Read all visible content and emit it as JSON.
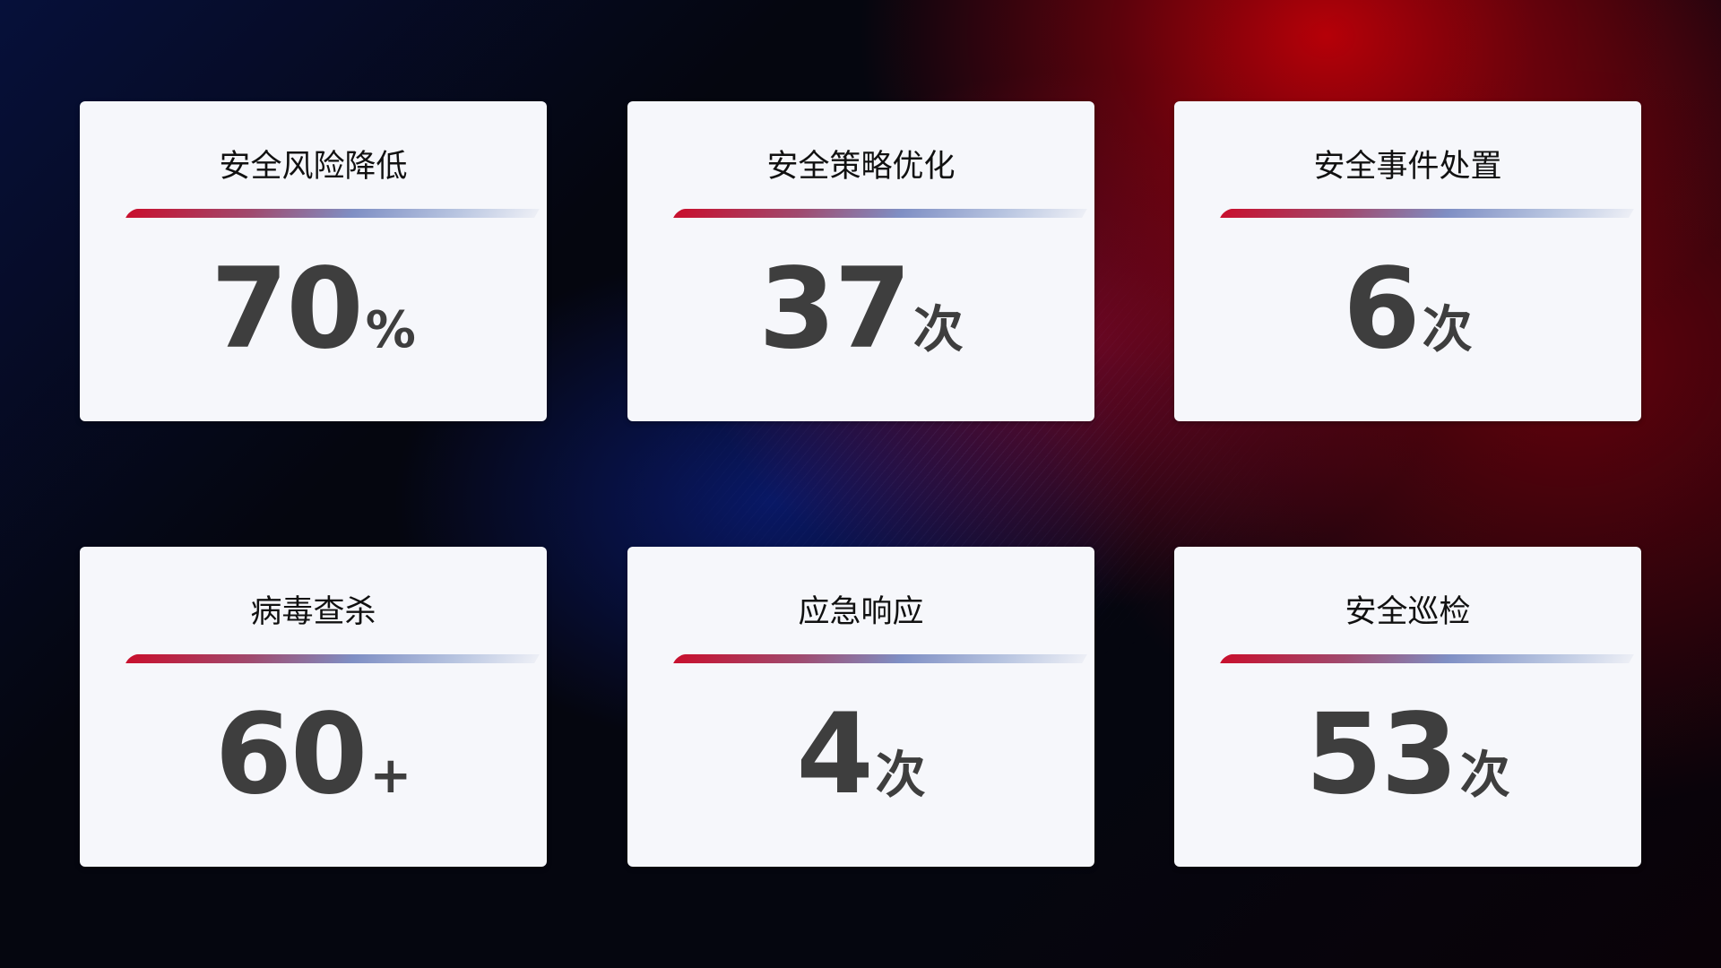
{
  "cards": [
    {
      "title": "安全风险降低",
      "value": "70",
      "unit": "%"
    },
    {
      "title": "安全策略优化",
      "value": "37",
      "unit": "次"
    },
    {
      "title": "安全事件处置",
      "value": "6",
      "unit": "次"
    },
    {
      "title": "病毒查杀",
      "value": "60",
      "unit": "+"
    },
    {
      "title": "应急响应",
      "value": "4",
      "unit": "次"
    },
    {
      "title": "安全巡检",
      "value": "53",
      "unit": "次"
    }
  ],
  "colors": {
    "accent_red": "#c8102e",
    "accent_blue": "#7f8fc4",
    "card_bg": "#f6f7fb",
    "value_text": "#3e3e3e"
  }
}
